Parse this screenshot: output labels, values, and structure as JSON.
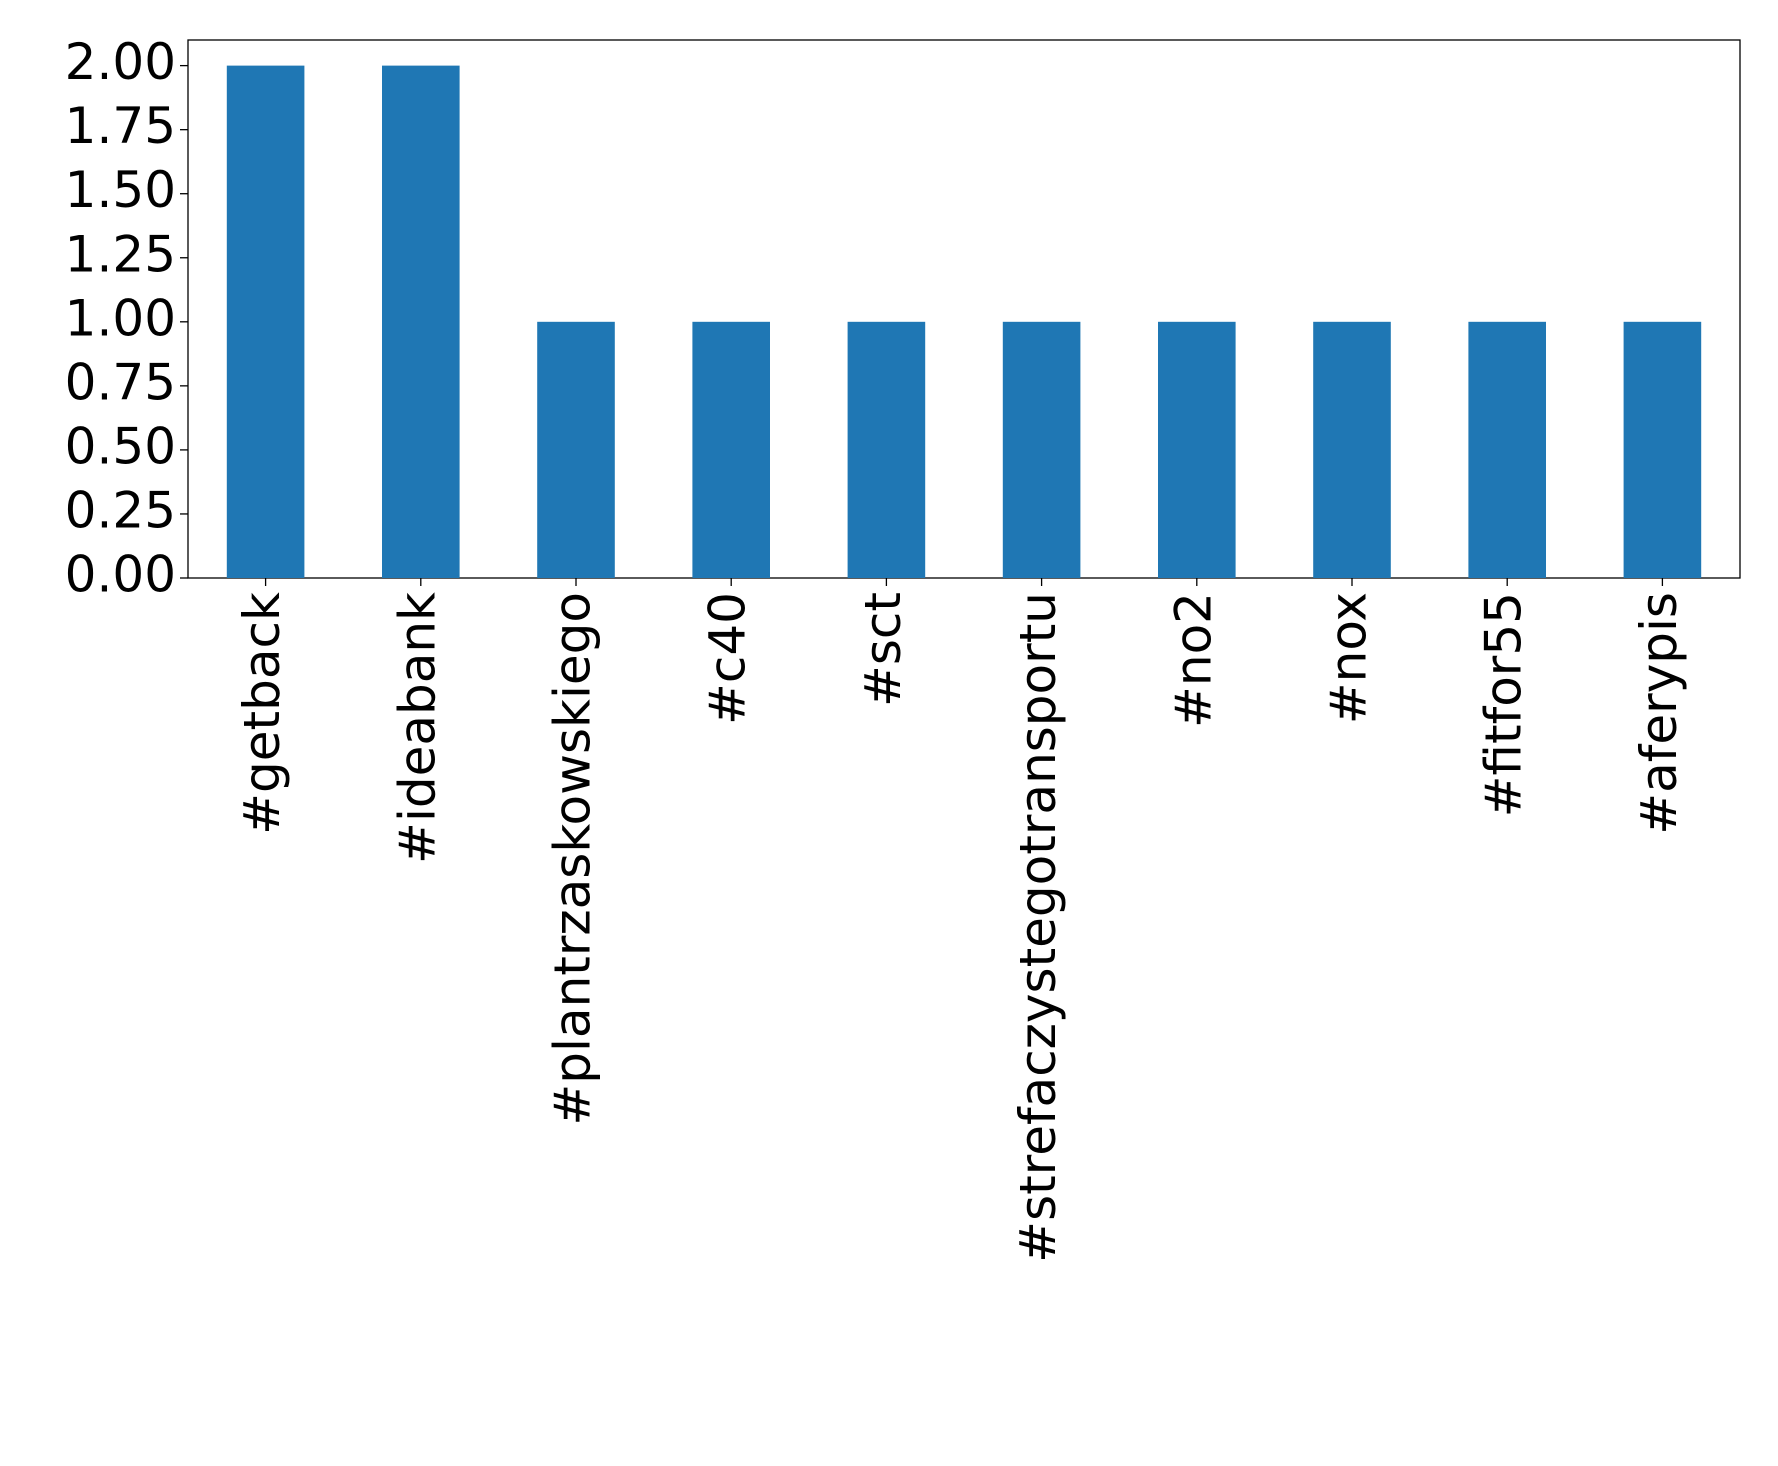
{
  "chart_data": {
    "type": "bar",
    "categories": [
      "#getback",
      "#ideabank",
      "#plantrzaskowskiego",
      "#c40",
      "#sct",
      "#strefaczystegotransportu",
      "#no2",
      "#nox",
      "#fitfor55",
      "#aferypis"
    ],
    "values": [
      2,
      2,
      1,
      1,
      1,
      1,
      1,
      1,
      1,
      1
    ],
    "color": "#1f77b4",
    "ylim": [
      0,
      2.1
    ],
    "yticks": [
      {
        "value": 0,
        "label": "0.00"
      },
      {
        "value": 0.25,
        "label": "0.25"
      },
      {
        "value": 0.5,
        "label": "0.50"
      },
      {
        "value": 0.75,
        "label": "0.75"
      },
      {
        "value": 1,
        "label": "1.00"
      },
      {
        "value": 1.25,
        "label": "1.25"
      },
      {
        "value": 1.5,
        "label": "1.50"
      },
      {
        "value": 1.75,
        "label": "1.75"
      },
      {
        "value": 2,
        "label": "2.00"
      }
    ],
    "grid": false
  }
}
